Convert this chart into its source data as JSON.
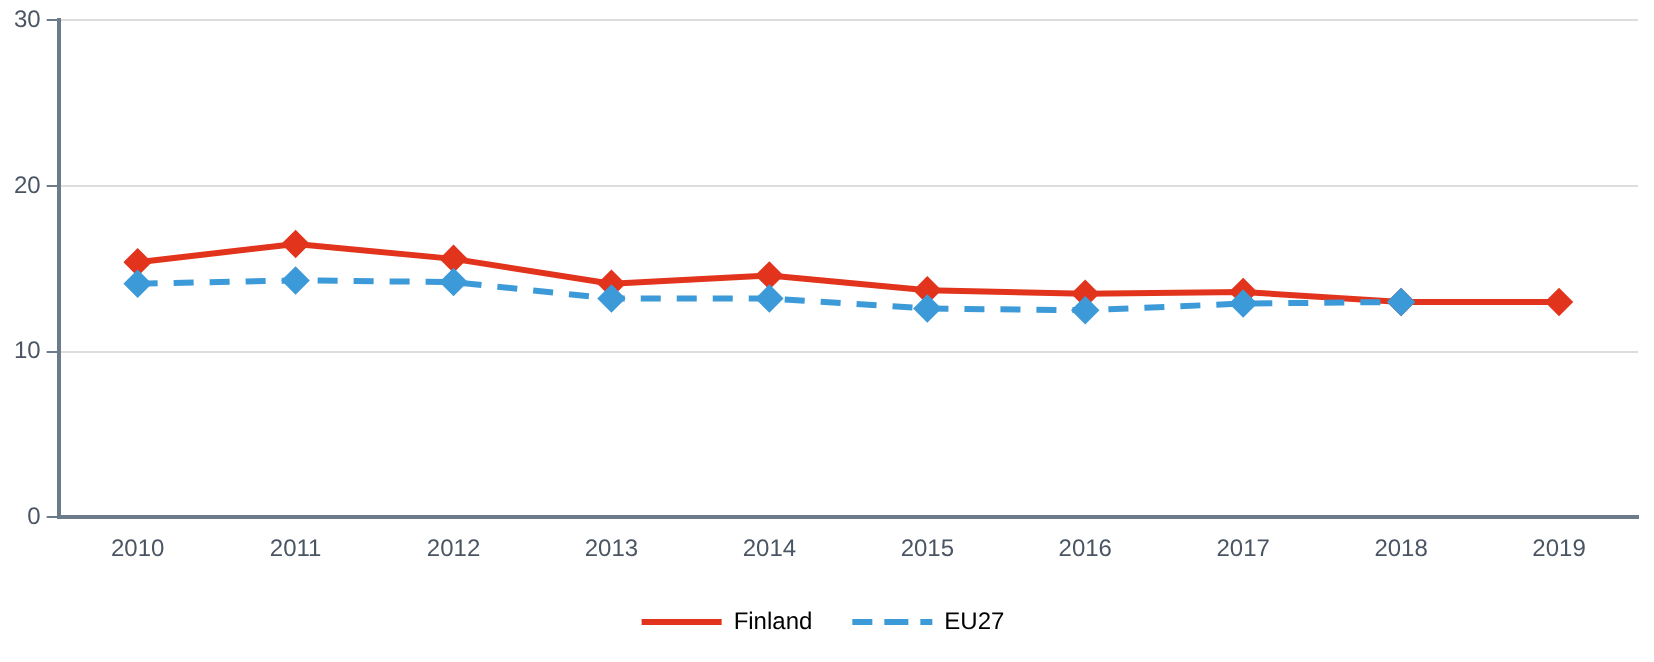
{
  "chart_data": {
    "type": "line",
    "categories": [
      "2010",
      "2011",
      "2012",
      "2013",
      "2014",
      "2015",
      "2016",
      "2017",
      "2018",
      "2019"
    ],
    "series": [
      {
        "name": "Finland",
        "color": "#e2341d",
        "line_style": "solid",
        "values": [
          15.4,
          16.5,
          15.6,
          14.1,
          14.6,
          13.7,
          13.5,
          13.6,
          13.0,
          13.0
        ]
      },
      {
        "name": "EU27",
        "color": "#3d9ad8",
        "line_style": "dashed",
        "values": [
          14.1,
          14.3,
          14.2,
          13.2,
          13.2,
          12.6,
          12.5,
          12.9,
          13.0,
          null
        ]
      }
    ],
    "ylim": [
      0,
      30
    ],
    "yticks": [
      0,
      10,
      20,
      30
    ],
    "grid": "y",
    "legend": "bottom",
    "marker": "diamond"
  }
}
